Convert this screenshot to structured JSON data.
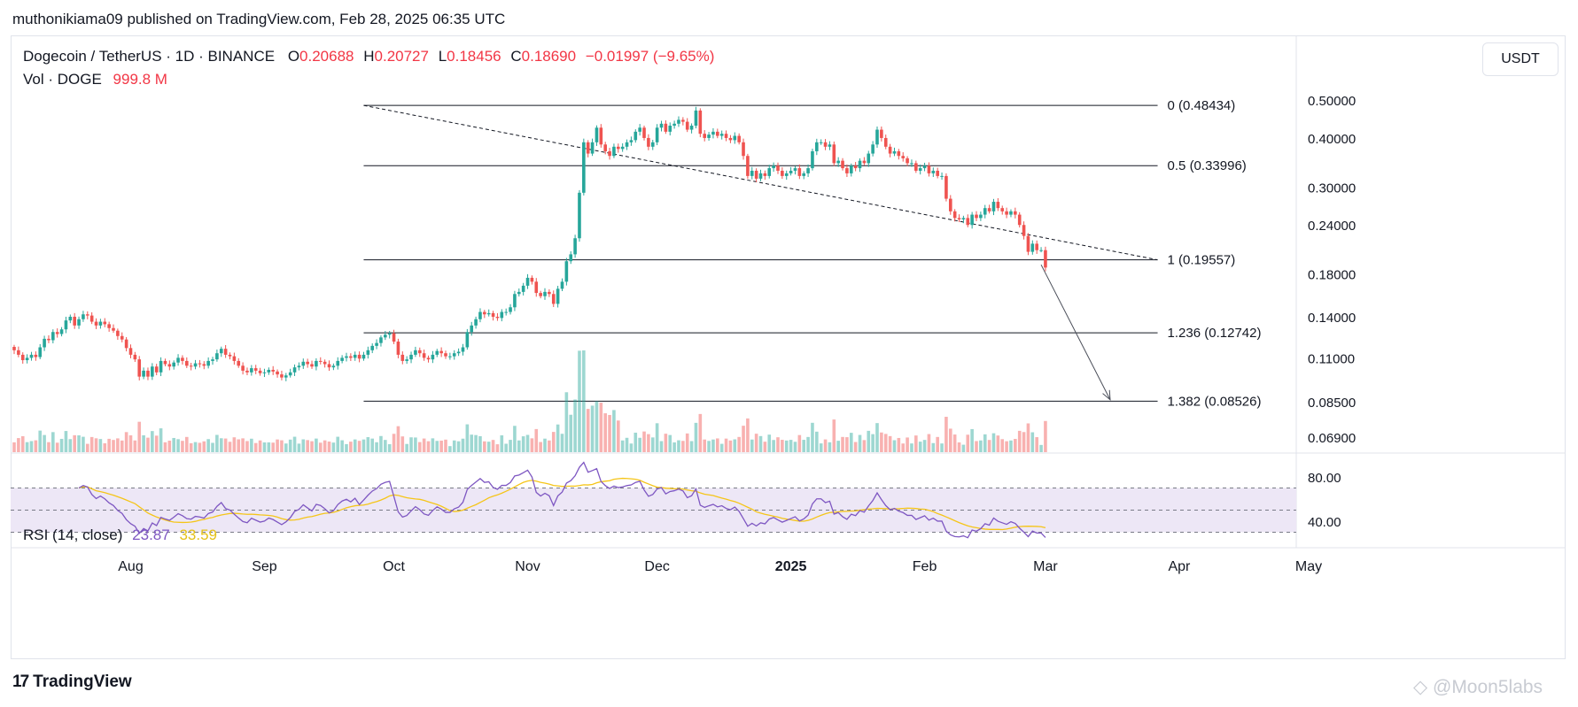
{
  "publish_line": "muthonikiama09 published on TradingView.com, Feb 28, 2025 06:35 UTC",
  "legend": {
    "symbol": "Dogecoin / TetherUS · 1D · BINANCE",
    "o_label": "O",
    "o": "0.20688",
    "h_label": "H",
    "h": "0.20727",
    "l_label": "L",
    "l": "0.18456",
    "c_label": "C",
    "c": "0.18690",
    "change": "−0.01997 (−9.65%)",
    "vol_label": "Vol · DOGE",
    "vol_value": "999.8 M"
  },
  "unit_button": "USDT",
  "rsi_legend": {
    "label": "RSI (14, close)",
    "rsi": "23.87",
    "ma": "33.59"
  },
  "footer_brand": "TradingView",
  "watermark": "@Moon5labs",
  "colors": {
    "up": "#26a69a",
    "down": "#ef5350",
    "rsi_line": "#7e57c2",
    "rsi_ma": "#f5c518",
    "rsi_band": "#ede7f6"
  },
  "chart_data": {
    "type": "candlestick",
    "timeframe": "1D",
    "price_scale": "log",
    "y_tick_labels": [
      "0.50000",
      "0.40000",
      "0.30000",
      "0.24000",
      "0.18000",
      "0.14000",
      "0.11000",
      "0.08500",
      "0.06900"
    ],
    "y_tick_values": [
      0.5,
      0.4,
      0.3,
      0.24,
      0.18,
      0.14,
      0.11,
      0.085,
      0.069
    ],
    "x_tick_labels": [
      "Aug",
      "Sep",
      "Oct",
      "Nov",
      "Dec",
      "2025",
      "Feb",
      "Mar",
      "Apr",
      "May"
    ],
    "x_tick_dates": [
      "2024-08-01",
      "2024-09-01",
      "2024-10-01",
      "2024-11-01",
      "2024-12-01",
      "2025-01-01",
      "2025-02-01",
      "2025-03-01",
      "2025-04-01",
      "2025-05-01"
    ],
    "series_start_date": "2024-07-05",
    "closes": [
      0.115,
      0.112,
      0.1085,
      0.11,
      0.112,
      0.1105,
      0.117,
      0.123,
      0.122,
      0.128,
      0.1265,
      0.13,
      0.137,
      0.14,
      0.133,
      0.138,
      0.142,
      0.141,
      0.136,
      0.133,
      0.136,
      0.134,
      0.131,
      0.129,
      0.125,
      0.1225,
      0.1165,
      0.112,
      0.109,
      0.0985,
      0.102,
      0.0985,
      0.1045,
      0.101,
      0.108,
      0.106,
      0.1045,
      0.107,
      0.11,
      0.108,
      0.105,
      0.1045,
      0.1065,
      0.106,
      0.105,
      0.108,
      0.109,
      0.113,
      0.116,
      0.112,
      0.111,
      0.108,
      0.105,
      0.102,
      0.101,
      0.1035,
      0.102,
      0.1005,
      0.101,
      0.1025,
      0.1015,
      0.0998,
      0.098,
      0.0992,
      0.101,
      0.104,
      0.105,
      0.1075,
      0.106,
      0.1045,
      0.108,
      0.1075,
      0.106,
      0.104,
      0.105,
      0.108,
      0.11,
      0.111,
      0.11,
      0.112,
      0.1095,
      0.112,
      0.115,
      0.118,
      0.12,
      0.124,
      0.126,
      0.127,
      0.121,
      0.112,
      0.108,
      0.109,
      0.112,
      0.115,
      0.113,
      0.11,
      0.109,
      0.112,
      0.1145,
      0.113,
      0.111,
      0.111,
      0.113,
      0.114,
      0.117,
      0.128,
      0.133,
      0.138,
      0.144,
      0.142,
      0.143,
      0.14,
      0.139,
      0.144,
      0.144,
      0.148,
      0.16,
      0.162,
      0.168,
      0.176,
      0.172,
      0.161,
      0.158,
      0.162,
      0.16,
      0.151,
      0.165,
      0.172,
      0.194,
      0.202,
      0.222,
      0.29,
      0.39,
      0.365,
      0.39,
      0.425,
      0.385,
      0.37,
      0.36,
      0.38,
      0.375,
      0.38,
      0.39,
      0.395,
      0.415,
      0.425,
      0.4,
      0.38,
      0.39,
      0.425,
      0.435,
      0.415,
      0.43,
      0.435,
      0.445,
      0.44,
      0.42,
      0.43,
      0.47,
      0.41,
      0.4,
      0.408,
      0.415,
      0.405,
      0.41,
      0.4,
      0.395,
      0.405,
      0.39,
      0.36,
      0.32,
      0.33,
      0.315,
      0.325,
      0.32,
      0.335,
      0.34,
      0.33,
      0.32,
      0.325,
      0.33,
      0.335,
      0.32,
      0.325,
      0.335,
      0.37,
      0.39,
      0.39,
      0.38,
      0.385,
      0.345,
      0.35,
      0.335,
      0.325,
      0.34,
      0.335,
      0.35,
      0.345,
      0.365,
      0.385,
      0.42,
      0.4,
      0.38,
      0.365,
      0.37,
      0.36,
      0.355,
      0.345,
      0.345,
      0.33,
      0.335,
      0.34,
      0.325,
      0.33,
      0.32,
      0.32,
      0.28,
      0.26,
      0.25,
      0.248,
      0.25,
      0.24,
      0.255,
      0.25,
      0.255,
      0.265,
      0.26,
      0.275,
      0.265,
      0.26,
      0.255,
      0.26,
      0.255,
      0.24,
      0.225,
      0.205,
      0.215,
      0.207,
      0.207,
      0.1869
    ],
    "volume_unit": "relative",
    "rsi": {
      "period": 14,
      "band_upper": 70,
      "band_middle": 50,
      "band_lower": 30,
      "y_tick_labels": [
        "80.00",
        "40.00"
      ],
      "last": 23.87,
      "ma_last": 33.59
    },
    "fib_levels": [
      {
        "ratio": "0",
        "price": 0.48434,
        "label": "0 (0.48434)"
      },
      {
        "ratio": "0.5",
        "price": 0.33996,
        "label": "0.5 (0.33996)"
      },
      {
        "ratio": "1",
        "price": 0.19557,
        "label": "1 (0.19557)"
      },
      {
        "ratio": "1.236",
        "price": 0.12742,
        "label": "1.236 (0.12742)"
      },
      {
        "ratio": "1.382",
        "price": 0.08526,
        "label": "1.382 (0.08526)"
      }
    ],
    "fib_start_date": "2024-09-24",
    "fib_end_date": "2025-03-27",
    "trendline": {
      "from": {
        "date": "2024-09-24",
        "price": 0.48434
      },
      "to": {
        "date": "2025-03-27",
        "price": 0.19557
      },
      "style": "dashed"
    },
    "projection_arrow": {
      "from": {
        "date": "2025-02-28",
        "price": 0.19
      },
      "to": {
        "date": "2025-03-16",
        "price": 0.086
      }
    }
  }
}
